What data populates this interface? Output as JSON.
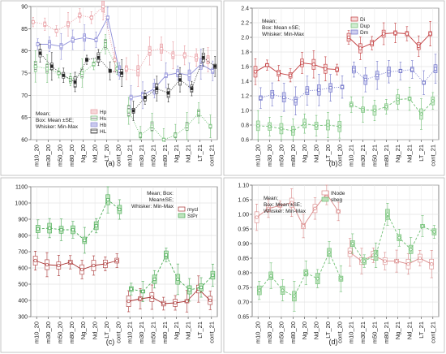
{
  "chart_data": [
    {
      "panel": "(a)",
      "type": "box",
      "categories": [
        "m10_20",
        "m30_20",
        "m50_20",
        "m80_20",
        "Ng_20",
        "Nd_20",
        "LT_20",
        "cont_20",
        "m10_21",
        "m30_21",
        "m50_21",
        "m80_21",
        "Ng_21",
        "Nd_21",
        "LT_21",
        "cont_21"
      ],
      "ylim": [
        60,
        90
      ],
      "yticks": [
        60,
        65,
        70,
        75,
        80,
        85,
        90
      ],
      "legend_text": [
        "Mean;",
        "Box: Mean ±SE;",
        "Whisker: Min-Max"
      ],
      "series": [
        {
          "name": "Hp",
          "values": [
            86.5,
            86.0,
            84.5,
            86.0,
            88.0,
            87.5,
            90.0,
            78.0,
            76.0,
            75.5,
            80.0,
            80.5,
            79.0,
            79.0,
            78.5,
            78.0
          ]
        },
        {
          "name": "Hs",
          "values": [
            76.5,
            76.0,
            75.0,
            73.5,
            75.0,
            77.0,
            81.5,
            76.0,
            66.5,
            61.0,
            63.0,
            60.0,
            61.0,
            63.0,
            66.0,
            63.0
          ]
        },
        {
          "name": "Hb",
          "values": [
            81.5,
            81.5,
            81.0,
            82.5,
            83.0,
            82.5,
            87.5,
            75.5,
            69.5,
            70.0,
            71.5,
            74.5,
            75.0,
            74.5,
            77.0,
            75.5
          ]
        },
        {
          "name": "HL",
          "values": [
            79.5,
            76.5,
            74.5,
            73.0,
            78.0,
            78.5,
            75.5,
            75.0,
            66.5,
            69.5,
            71.5,
            70.5,
            73.5,
            71.5,
            78.5,
            76.5
          ]
        }
      ]
    },
    {
      "panel": "(b)",
      "type": "box",
      "categories": [
        "m10_20",
        "m30_20",
        "m50_20",
        "m80_20",
        "Ng_20",
        "Nd_20",
        "LT_20",
        "cont_20",
        "m10_21",
        "m30_21",
        "m50_21",
        "m80_21",
        "Ng_21",
        "Nd_21",
        "LT_21",
        "cont_21"
      ],
      "ylim": [
        0.6,
        2.4
      ],
      "yticks": [
        0.6,
        0.8,
        1.0,
        1.2,
        1.4,
        1.6,
        1.8,
        2.0,
        2.2,
        2.4
      ],
      "legend_text": [
        "Mean;",
        "Box: Mean ±SE;",
        "Whisker: Min-Max"
      ],
      "series": [
        {
          "name": "Di",
          "values": [
            1.53,
            1.62,
            1.51,
            1.48,
            1.65,
            1.63,
            1.57,
            1.56,
            2.0,
            1.85,
            1.92,
            2.05,
            2.06,
            2.05,
            1.88,
            2.05
          ]
        },
        {
          "name": "Dup",
          "values": [
            0.79,
            0.78,
            0.75,
            0.72,
            0.82,
            0.79,
            0.8,
            0.78,
            1.08,
            1.01,
            1.0,
            1.05,
            1.15,
            1.16,
            0.95,
            1.13
          ]
        },
        {
          "name": "Dm",
          "values": [
            1.17,
            1.22,
            1.18,
            1.13,
            1.27,
            1.28,
            1.31,
            1.32,
            1.56,
            1.42,
            1.48,
            1.53,
            1.54,
            1.56,
            1.38,
            1.57
          ]
        }
      ]
    },
    {
      "panel": "(c)",
      "type": "box",
      "categories": [
        "m10_20",
        "m30_20",
        "m50_20",
        "m80_20",
        "Ng_20",
        "Nd_20",
        "LT_20",
        "cont_20",
        "m10_21",
        "m30_21",
        "m50_21",
        "m80_21",
        "Ng_21",
        "Nd_21",
        "LT_21",
        "cont_21"
      ],
      "ylim": [
        300,
        1100
      ],
      "yticks": [
        300,
        400,
        500,
        600,
        700,
        800,
        900,
        1000,
        1100
      ],
      "legend_text": [
        "Mean; Box:",
        "Mean±SE;",
        "Whisker: Min-Max"
      ],
      "series": [
        {
          "name": "mycl",
          "values": [
            645,
            620,
            615,
            635,
            590,
            615,
            625,
            645,
            395,
            410,
            420,
            380,
            385,
            395,
            470,
            400
          ]
        },
        {
          "name": "StPr",
          "values": [
            840,
            845,
            835,
            835,
            770,
            860,
            1020,
            960,
            470,
            455,
            530,
            680,
            530,
            465,
            480,
            555
          ]
        }
      ]
    },
    {
      "panel": "(d)",
      "type": "box",
      "categories": [
        "m10_20",
        "m30_20",
        "m50_20",
        "m80_20",
        "Ng_20",
        "Nd_20",
        "LT_20",
        "cont_20",
        "m10_21",
        "m30_21",
        "m50_21",
        "m80_21",
        "Ng_21",
        "Nd_21",
        "LT_21",
        "cont_21"
      ],
      "ylim": [
        0.65,
        1.1
      ],
      "yticks": [
        0.65,
        0.7,
        0.75,
        0.8,
        0.85,
        0.9,
        0.95,
        1.0,
        1.05,
        1.1
      ],
      "legend_text": [
        "Mean;",
        "Box: Mean ±SE;",
        "Whisker: Min-Max"
      ],
      "series": [
        {
          "name": "INode",
          "values": [
            0.99,
            1.02,
            1.03,
            1.04,
            0.96,
            1.02,
            1.07,
            1.01,
            0.87,
            0.84,
            0.86,
            0.84,
            0.84,
            0.83,
            0.85,
            0.83
          ]
        },
        {
          "name": "sbeg",
          "values": [
            0.74,
            0.79,
            0.74,
            0.72,
            0.8,
            0.78,
            0.87,
            0.78,
            0.9,
            0.84,
            0.86,
            1.0,
            0.92,
            0.88,
            0.96,
            0.94
          ]
        }
      ]
    }
  ],
  "panel_labels": [
    "(a)",
    "(b)",
    "(c)",
    "(d)"
  ],
  "colors": {
    "hp": "#e89aa0",
    "hs": "#6fbf73",
    "hb": "#8f8fd8",
    "hl": "#333333",
    "di": "#c0393b",
    "dup": "#6fbf73",
    "dm": "#6f73c8",
    "mycl": "#a83232",
    "stpr": "#4aaa55",
    "inode": "#d98888",
    "sbeg": "#6fbf73"
  }
}
